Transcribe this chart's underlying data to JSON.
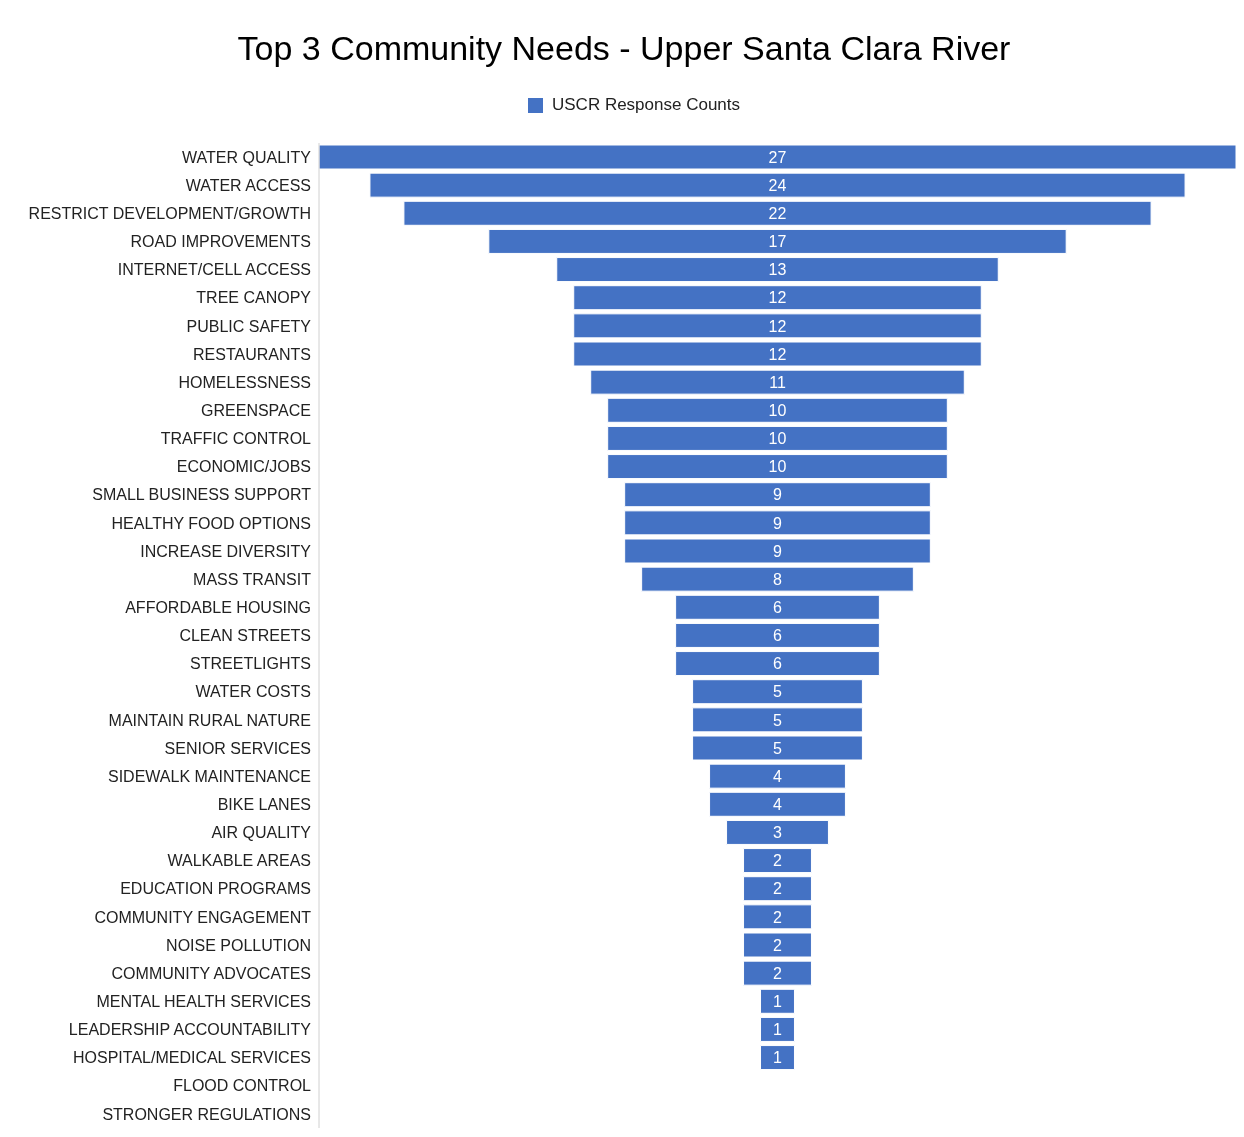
{
  "chart_data": {
    "type": "other",
    "title": "Top 3 Community Needs - Upper Santa Clara River",
    "categories": [
      "WATER QUALITY",
      "WATER ACCESS",
      "RESTRICT DEVELOPMENT/GROWTH",
      "ROAD IMPROVEMENTS",
      "INTERNET/CELL ACCESS",
      "TREE CANOPY",
      "PUBLIC SAFETY",
      "RESTAURANTS",
      "HOMELESSNESS",
      "GREENSPACE",
      "TRAFFIC CONTROL",
      "ECONOMIC/JOBS",
      "SMALL BUSINESS SUPPORT",
      "HEALTHY FOOD OPTIONS",
      "INCREASE DIVERSITY",
      "MASS TRANSIT",
      "AFFORDABLE HOUSING",
      "CLEAN STREETS",
      "STREETLIGHTS",
      "WATER COSTS",
      "MAINTAIN RURAL NATURE",
      "SENIOR SERVICES",
      "SIDEWALK MAINTENANCE",
      "BIKE LANES",
      "AIR QUALITY",
      "WALKABLE AREAS",
      "EDUCATION PROGRAMS",
      "COMMUNITY ENGAGEMENT",
      "NOISE POLLUTION",
      "COMMUNITY ADVOCATES",
      "MENTAL HEALTH SERVICES",
      "LEADERSHIP ACCOUNTABILITY",
      "HOSPITAL/MEDICAL SERVICES",
      "FLOOD CONTROL",
      "STRONGER REGULATIONS"
    ],
    "series": [
      {
        "name": "USCR Response Counts",
        "color": "#4472c4",
        "values": [
          27,
          24,
          22,
          17,
          13,
          12,
          12,
          12,
          11,
          10,
          10,
          10,
          9,
          9,
          9,
          8,
          6,
          6,
          6,
          5,
          5,
          5,
          4,
          4,
          3,
          2,
          2,
          2,
          2,
          2,
          1,
          1,
          1,
          null,
          null
        ]
      }
    ],
    "data_labels": true,
    "legend": "top"
  }
}
